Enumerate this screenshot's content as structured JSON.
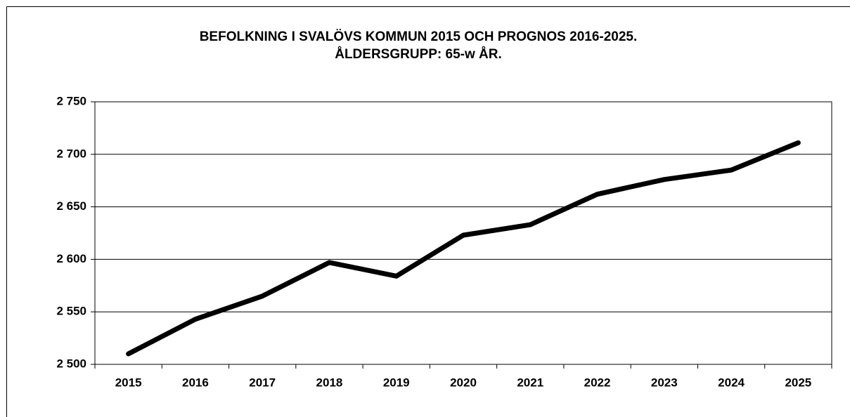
{
  "chart_data": {
    "type": "line",
    "title": "BEFOLKNING I SVALÖVS KOMMUN 2015 OCH PROGNOS 2016-2025.",
    "subtitle": "ÅLDERSGRUPP: 65-w ÅR.",
    "categories": [
      "2015",
      "2016",
      "2017",
      "2018",
      "2019",
      "2020",
      "2021",
      "2022",
      "2023",
      "2024",
      "2025"
    ],
    "values": [
      2510,
      2543,
      2565,
      2597,
      2584,
      2623,
      2633,
      2662,
      2676,
      2685,
      2711
    ],
    "color": "#000000",
    "ylim": [
      2500,
      2750
    ],
    "yticks": [
      {
        "value": 2500,
        "label": "2 500"
      },
      {
        "value": 2550,
        "label": "2 550"
      },
      {
        "value": 2600,
        "label": "2 600"
      },
      {
        "value": 2650,
        "label": "2 650"
      },
      {
        "value": 2700,
        "label": "2 700"
      },
      {
        "value": 2750,
        "label": "2 750"
      }
    ],
    "grid": true
  }
}
